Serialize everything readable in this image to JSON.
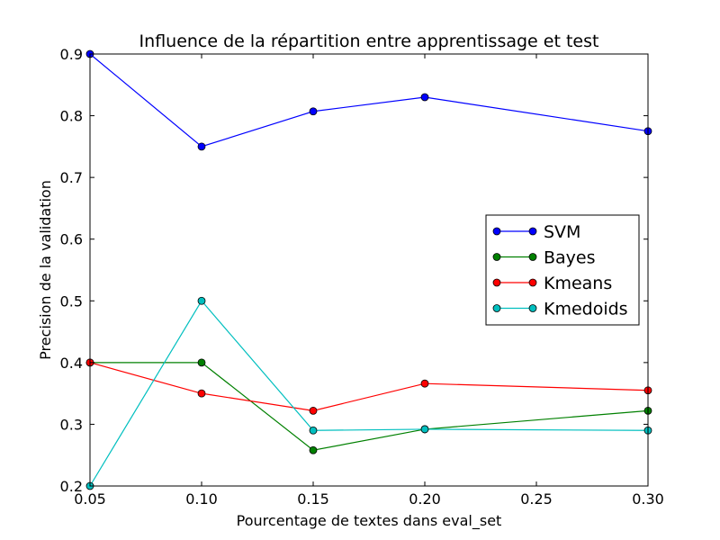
{
  "chart_data": {
    "type": "line",
    "title": "Influence de la répartition entre apprentissage et test",
    "xlabel": "Pourcentage de textes dans eval_set",
    "ylabel": "Precision de la validation",
    "xlim": [
      0.05,
      0.3
    ],
    "ylim": [
      0.2,
      0.9
    ],
    "xticks": [
      0.05,
      0.1,
      0.15,
      0.2,
      0.25,
      0.3
    ],
    "xtick_labels": [
      "0.05",
      "0.10",
      "0.15",
      "0.20",
      "0.25",
      "0.30"
    ],
    "yticks": [
      0.2,
      0.3,
      0.4,
      0.5,
      0.6,
      0.7,
      0.8,
      0.9
    ],
    "ytick_labels": [
      "0.2",
      "0.3",
      "0.4",
      "0.5",
      "0.6",
      "0.7",
      "0.8",
      "0.9"
    ],
    "grid": false,
    "legend_position": "right",
    "x": [
      0.05,
      0.1,
      0.15,
      0.2,
      0.3
    ],
    "series": [
      {
        "name": "SVM",
        "color": "#0000ff",
        "values": [
          0.9,
          0.75,
          0.807,
          0.83,
          0.775
        ]
      },
      {
        "name": "Bayes",
        "color": "#008000",
        "values": [
          0.4,
          0.4,
          0.258,
          0.292,
          0.322
        ]
      },
      {
        "name": "Kmeans",
        "color": "#ff0000",
        "values": [
          0.4,
          0.35,
          0.322,
          0.366,
          0.355
        ]
      },
      {
        "name": "Kmedoids",
        "color": "#00bfbf",
        "values": [
          0.2,
          0.5,
          0.29,
          0.292,
          0.29
        ]
      }
    ]
  }
}
